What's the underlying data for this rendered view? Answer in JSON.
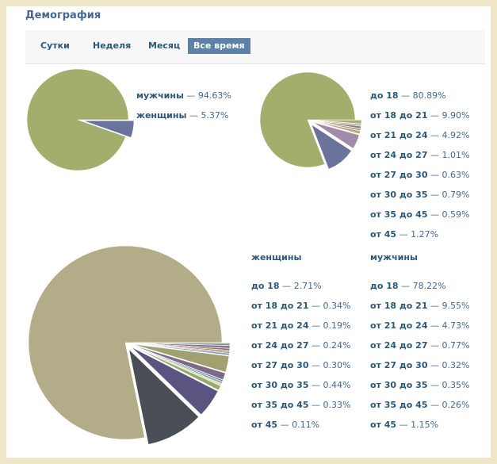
{
  "header": {
    "title": "Демография"
  },
  "tabs": [
    "Сутки",
    "Неделя",
    "Месяц",
    "Все время"
  ],
  "active_tab": "Все время",
  "chart_data": [
    {
      "type": "pie",
      "categories": [
        "мужчины",
        "женщины"
      ],
      "values": [
        94.63,
        5.37
      ],
      "value_labels": [
        "94.63%",
        "5.37%"
      ],
      "colors": [
        "#a4ae6c",
        "#6a739c"
      ]
    },
    {
      "type": "pie",
      "categories": [
        "до 18",
        "от 18 до 21",
        "от 21 до 24",
        "от 24 до 27",
        "от 27 до 30",
        "от 30 до 35",
        "от 35 до 45",
        "от 45"
      ],
      "values": [
        80.89,
        9.9,
        4.92,
        1.01,
        0.63,
        0.79,
        0.59,
        1.27
      ],
      "value_labels": [
        "80.89%",
        "9.90%",
        "4.92%",
        "1.01%",
        "0.63%",
        "0.79%",
        "0.59%",
        "1.27%"
      ],
      "colors": [
        "#a4ae6c",
        "#6a739c",
        "#a08ca8",
        "#c7a37a",
        "#8d9e8a",
        "#9c7a6a",
        "#8ab0b8",
        "#b5a96e"
      ]
    },
    {
      "type": "pie",
      "categories": [
        "до 18",
        "от 18 до 21",
        "от 21 до 24",
        "от 24 до 27",
        "от 27 до 30",
        "от 30 до 35",
        "от 35 до 45",
        "от 45"
      ],
      "series": [
        {
          "name": "женщины",
          "values": [
            2.71,
            0.34,
            0.19,
            0.24,
            0.3,
            0.44,
            0.33,
            0.11
          ],
          "value_labels": [
            "2.71%",
            "0.34%",
            "0.19%",
            "0.24%",
            "0.30%",
            "0.44%",
            "0.33%",
            "0.11%"
          ],
          "colors": [
            "#a0a070",
            "#8aa0c0",
            "#c07070",
            "#7a9a5a",
            "#a06a5a",
            "#8a6aa0",
            "#6a9a8a",
            "#b08a4a"
          ]
        },
        {
          "name": "мужчины",
          "values": [
            78.22,
            9.55,
            4.73,
            0.77,
            0.32,
            0.35,
            0.26,
            1.15
          ],
          "value_labels": [
            "78.22%",
            "9.55%",
            "4.73%",
            "0.77%",
            "0.32%",
            "0.35%",
            "0.26%",
            "1.15%"
          ],
          "colors": [
            "#b2ad88",
            "#4a4e56",
            "#5a5580",
            "#9aa86a",
            "#c8e8a0",
            "#9ea4b8",
            "#6a8a9c",
            "#7c6a8a"
          ]
        }
      ]
    }
  ]
}
